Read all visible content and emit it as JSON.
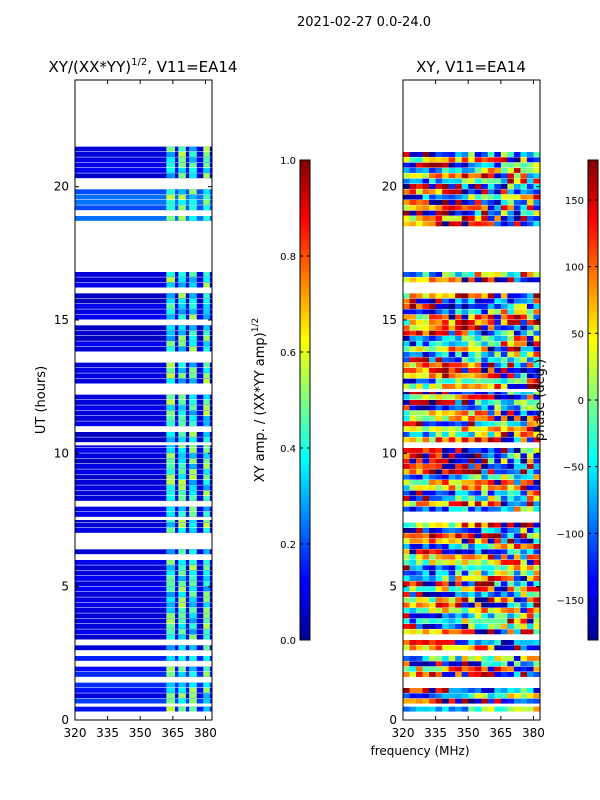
{
  "chart_data": {
    "suptitle": "2021-02-27 0.0-24.0",
    "panels": [
      {
        "id": "left",
        "type": "heatmap",
        "title": "XY/(XX*YY)",
        "title_sup": "1/2",
        "title_suffix": ", V11=EA14",
        "ylabel": "UT (hours)",
        "xlim": [
          320,
          383
        ],
        "ylim": [
          0,
          24
        ],
        "xticks": [
          320,
          335,
          350,
          365,
          380
        ],
        "yticks": [
          0,
          5,
          10,
          15,
          20
        ],
        "colormap": "jet",
        "clim": [
          0.0,
          1.0
        ],
        "background_level": 0.06,
        "active_channels_mhz": [
          [
            362,
            366
          ],
          [
            367.5,
            371
          ],
          [
            372.5,
            376
          ],
          [
            379,
            382
          ]
        ],
        "active_channel_level": 0.42,
        "data_windows_hours": [
          [
            0.3,
            0.5
          ],
          [
            0.6,
            1.4
          ],
          [
            1.6,
            2.4
          ],
          [
            2.6,
            7.5
          ],
          [
            7.6,
            10.3
          ],
          [
            10.4,
            12.3
          ],
          [
            12.4,
            16.0
          ],
          [
            16.2,
            16.8
          ],
          [
            18.5,
            21.5
          ]
        ],
        "colorbar": {
          "label": "XY amp. / (XX*YY amp)",
          "label_sup": "1/2",
          "ticks": [
            0.0,
            0.2,
            0.4,
            0.6,
            0.8,
            1.0
          ],
          "ticklabels": [
            "0.0",
            "0.2",
            "0.4",
            "0.6",
            "0.8",
            "1.0"
          ]
        }
      },
      {
        "id": "right",
        "type": "heatmap",
        "title": "XY, V11=EA14",
        "xlim": [
          320,
          383
        ],
        "ylim": [
          0,
          24
        ],
        "xticks": [
          320,
          335,
          350,
          365,
          380
        ],
        "yticks": [
          0,
          5,
          10,
          15,
          20
        ],
        "colormap": "jet",
        "clim": [
          -180,
          180
        ],
        "data_windows_hours": [
          [
            0.3,
            0.5
          ],
          [
            0.6,
            1.4
          ],
          [
            1.6,
            2.4
          ],
          [
            2.6,
            7.5
          ],
          [
            7.6,
            10.3
          ],
          [
            10.4,
            12.3
          ],
          [
            12.4,
            16.0
          ],
          [
            16.2,
            16.8
          ],
          [
            18.5,
            21.5
          ]
        ],
        "colorbar": {
          "label": "phase (deg.)",
          "ticks": [
            -150,
            -100,
            -50,
            0,
            50,
            100,
            150
          ],
          "ticklabels": [
            "−150",
            "−100",
            "−50",
            "0",
            "50",
            "100",
            "150"
          ]
        }
      }
    ],
    "xlabel": "frequency (MHz)"
  }
}
